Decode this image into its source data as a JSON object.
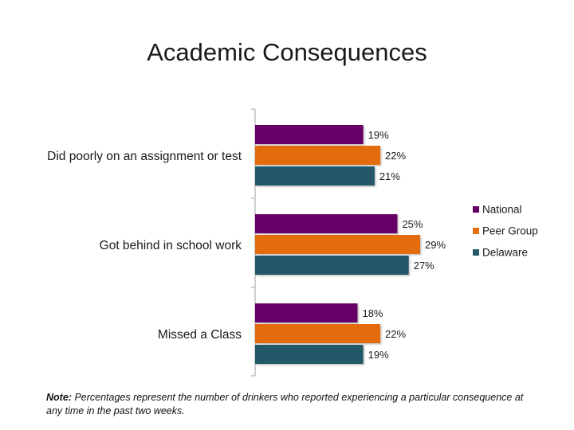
{
  "title": "Academic Consequences",
  "note": {
    "label": "Note:",
    "text": "Percentages represent the number of drinkers who reported experiencing a particular consequence at any time in the past two weeks."
  },
  "colors": {
    "National": "#660066",
    "Peer Group": "#e46c0a",
    "Delaware": "#215968",
    "axis": "#bfbfbf",
    "text": "#1a1a1a"
  },
  "chart_data": {
    "type": "bar",
    "orientation": "horizontal",
    "title": "Academic Consequences",
    "categories": [
      "Did poorly on an assignment or test",
      "Got behind in school work",
      "Missed a Class"
    ],
    "series": [
      {
        "name": "National",
        "values": [
          19,
          25,
          18
        ],
        "labels": [
          "19%",
          "25%",
          "18%"
        ]
      },
      {
        "name": "Peer Group",
        "values": [
          22,
          29,
          22
        ],
        "labels": [
          "22%",
          "29%",
          "22%"
        ]
      },
      {
        "name": "Delaware",
        "values": [
          21,
          27,
          19
        ],
        "labels": [
          "21%",
          "27%",
          "19%"
        ]
      }
    ],
    "value_suffix": "%",
    "xlim": [
      0,
      29
    ],
    "grid": false,
    "legend_position": "right"
  }
}
